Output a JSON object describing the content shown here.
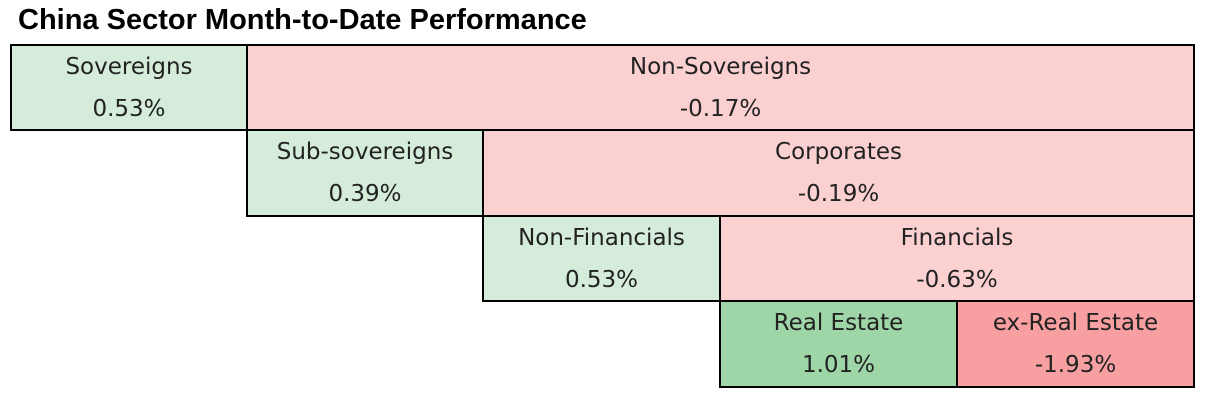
{
  "chart_data": {
    "type": "table",
    "title": "China Sector Month-to-Date Performance",
    "cells": {
      "sovereigns": {
        "label": "Sovereigns",
        "value": "0.53%",
        "color": "#d4ecd9"
      },
      "non_sovereigns": {
        "label": "Non-Sovereigns",
        "value": "-0.17%",
        "color": "#fbd0d1"
      },
      "sub_sovereigns": {
        "label": "Sub-sovereigns",
        "value": "0.39%",
        "color": "#d4ecd9"
      },
      "corporates": {
        "label": "Corporates",
        "value": "-0.19%",
        "color": "#fbd0d1"
      },
      "non_financials": {
        "label": "Non-Financials",
        "value": "0.53%",
        "color": "#d4ecd9"
      },
      "financials": {
        "label": "Financials",
        "value": "-0.63%",
        "color": "#fbd0d1"
      },
      "real_estate": {
        "label": "Real Estate",
        "value": "1.01%",
        "color": "#9ed6a8"
      },
      "ex_real_estate": {
        "label": "ex-Real Estate",
        "value": "-1.93%",
        "color": "#f8a0a1"
      }
    }
  }
}
